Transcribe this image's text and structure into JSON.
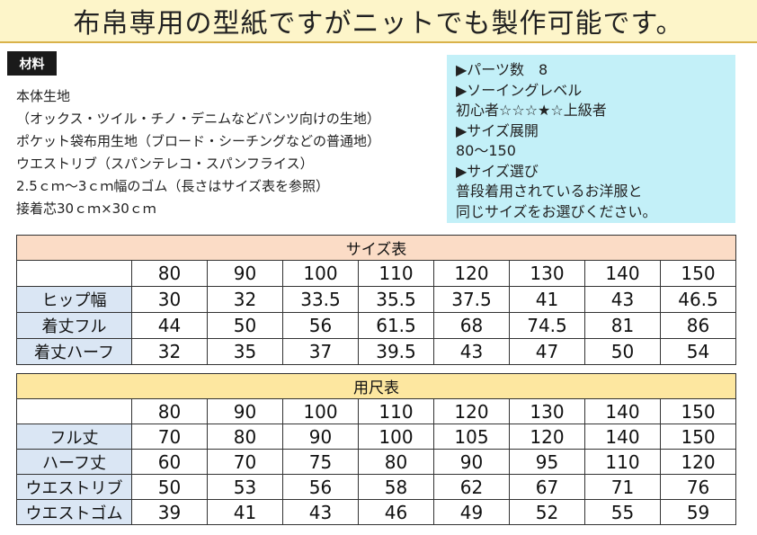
{
  "banner": {
    "text": "布帛専用の型紙ですがニットでも製作可能です。"
  },
  "materials": {
    "label": "材料",
    "lines": [
      "本体生地",
      "（オックス・ツイル・チノ・デニムなどパンツ向けの生地）",
      "ポケット袋布用生地（ブロード・シーチングなどの普通地）",
      "ウエストリブ（スパンテレコ・スパンフライス）",
      "2.5ｃｍ〜3ｃｍ幅のゴム（長さはサイズ表を参照）",
      "接着芯30ｃｍ×30ｃｍ"
    ]
  },
  "info": {
    "lines": [
      "▶パーツ数　8",
      "▶ソーイングレベル",
      "初心者☆☆☆★☆上級者",
      "▶サイズ展開",
      "80〜150",
      "▶サイズ選び",
      "普段着用されているお洋服と",
      "同じサイズをお選びください。"
    ]
  },
  "size_table": {
    "title": "サイズ表",
    "sizes": [
      "80",
      "90",
      "100",
      "110",
      "120",
      "130",
      "140",
      "150"
    ],
    "rows": [
      {
        "label": "ヒップ幅",
        "values": [
          "30",
          "32",
          "33.5",
          "35.5",
          "37.5",
          "41",
          "43",
          "46.5"
        ]
      },
      {
        "label": "着丈フル",
        "values": [
          "44",
          "50",
          "56",
          "61.5",
          "68",
          "74.5",
          "81",
          "86"
        ]
      },
      {
        "label": "着丈ハーフ",
        "values": [
          "32",
          "35",
          "37",
          "39.5",
          "43",
          "47",
          "50",
          "54"
        ]
      }
    ]
  },
  "yardage_table": {
    "title": "用尺表",
    "sizes": [
      "80",
      "90",
      "100",
      "110",
      "120",
      "130",
      "140",
      "150"
    ],
    "rows": [
      {
        "label": "フル丈",
        "values": [
          "70",
          "80",
          "90",
          "100",
          "105",
          "120",
          "140",
          "150"
        ]
      },
      {
        "label": "ハーフ丈",
        "values": [
          "60",
          "70",
          "75",
          "80",
          "90",
          "95",
          "110",
          "120"
        ]
      },
      {
        "label": "ウエストリブ",
        "values": [
          "50",
          "53",
          "56",
          "58",
          "62",
          "67",
          "71",
          "76"
        ]
      },
      {
        "label": "ウエストゴム",
        "values": [
          "39",
          "41",
          "43",
          "46",
          "49",
          "52",
          "55",
          "59"
        ]
      }
    ]
  }
}
